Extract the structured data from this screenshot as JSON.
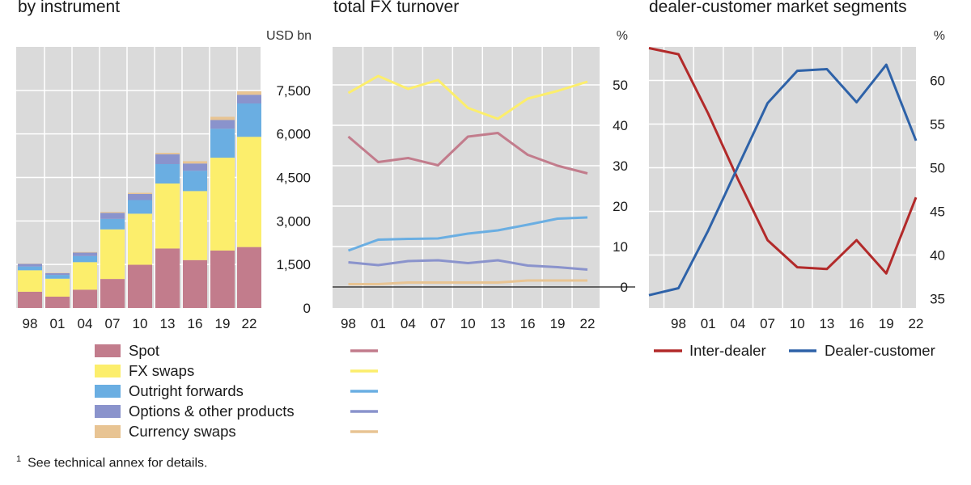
{
  "panels": [
    {
      "title": "by instrument",
      "unit": "USD bn"
    },
    {
      "title": "total FX turnover",
      "unit": "%"
    },
    {
      "title": "dealer-customer market segments",
      "unit": "%"
    }
  ],
  "footnote": {
    "marker": "1",
    "text": "See technical annex for details."
  },
  "colors": {
    "spot": "#c27c8c",
    "fx_swaps": "#fcee6c",
    "outright_forwards": "#6aaee2",
    "options_other": "#8a93cc",
    "currency_swaps": "#e8c493",
    "inter_dealer": "#b22a2a",
    "dealer_customer": "#2e62a8",
    "panel_bg": "#dadada"
  },
  "chart_data": [
    {
      "type": "bar",
      "stacked": true,
      "title": "by instrument",
      "ylabel": "USD bn",
      "categories": [
        "98",
        "01",
        "04",
        "07",
        "10",
        "13",
        "16",
        "19",
        "22"
      ],
      "ylim": [
        0,
        9000
      ],
      "yticks": [
        0,
        1500,
        3000,
        4500,
        6000,
        7500
      ],
      "ytick_labels": [
        "0",
        "1,500",
        "3,000",
        "4,500",
        "6,000",
        "7,500"
      ],
      "grid": true,
      "legend_position": "below",
      "series": [
        {
          "name": "Spot",
          "color_key": "spot",
          "values": [
            560,
            390,
            630,
            1000,
            1490,
            2050,
            1650,
            1980,
            2100
          ]
        },
        {
          "name": "FX swaps",
          "color_key": "fx_swaps",
          "values": [
            740,
            620,
            950,
            1710,
            1760,
            2240,
            2380,
            3200,
            3800
          ]
        },
        {
          "name": "Outright forwards",
          "color_key": "outright_forwards",
          "values": [
            130,
            130,
            210,
            360,
            470,
            670,
            700,
            1000,
            1150
          ]
        },
        {
          "name": "Options & other products",
          "color_key": "options_other",
          "values": [
            90,
            60,
            120,
            210,
            210,
            340,
            250,
            300,
            300
          ]
        },
        {
          "name": "Currency swaps",
          "color_key": "currency_swaps",
          "values": [
            10,
            10,
            20,
            30,
            40,
            50,
            80,
            110,
            120
          ]
        }
      ]
    },
    {
      "type": "line",
      "title": "total FX turnover",
      "ylabel": "%",
      "x": [
        "98",
        "01",
        "04",
        "07",
        "10",
        "13",
        "16",
        "19",
        "22"
      ],
      "ylim": [
        -2,
        55
      ],
      "yticks": [
        0,
        10,
        20,
        30,
        40,
        50
      ],
      "ytick_labels": [
        "0",
        "10",
        "20",
        "30",
        "40",
        "50"
      ],
      "grid": true,
      "legend_position": "below",
      "series": [
        {
          "color_key": "spot",
          "x": [
            1998,
            2001,
            2004,
            2007,
            2010,
            2013,
            2016,
            2019,
            2022
          ],
          "values": [
            37.2,
            30.9,
            31.9,
            30.1,
            37.2,
            38.1,
            32.7,
            30.0,
            28.1
          ]
        },
        {
          "color_key": "fx_swaps",
          "x": [
            1998,
            2001,
            2004,
            2007,
            2010,
            2013,
            2016,
            2019,
            2022
          ],
          "values": [
            48.0,
            52.2,
            49.0,
            51.2,
            44.3,
            41.6,
            46.6,
            48.5,
            50.8
          ]
        },
        {
          "color_key": "outright_forwards",
          "x": [
            1998,
            2001,
            2004,
            2007,
            2010,
            2013,
            2016,
            2019,
            2022
          ],
          "values": [
            9.0,
            11.7,
            11.9,
            12.0,
            13.2,
            14.0,
            15.4,
            16.9,
            17.2
          ]
        },
        {
          "color_key": "options_other",
          "x": [
            1998,
            2001,
            2004,
            2007,
            2010,
            2013,
            2016,
            2019,
            2022
          ],
          "values": [
            6.1,
            5.4,
            6.4,
            6.6,
            5.9,
            6.6,
            5.3,
            4.9,
            4.3
          ]
        },
        {
          "color_key": "currency_swaps",
          "x": [
            1998,
            2001,
            2004,
            2007,
            2010,
            2013,
            2016,
            2019,
            2022
          ],
          "values": [
            0.7,
            0.7,
            1.1,
            1.1,
            1.1,
            1.1,
            1.6,
            1.6,
            1.6
          ]
        }
      ]
    },
    {
      "type": "line",
      "title": "dealer-customer market segments",
      "ylabel": "%",
      "x": [
        "98",
        "01",
        "04",
        "07",
        "10",
        "13",
        "16",
        "19",
        "22"
      ],
      "ylim": [
        35,
        63
      ],
      "yticks": [
        35,
        40,
        45,
        50,
        55,
        60
      ],
      "ytick_labels": [
        "35",
        "40",
        "45",
        "50",
        "55",
        "60"
      ],
      "grid": true,
      "legend_position": "below",
      "series": [
        {
          "name": "Inter-dealer",
          "color_key": "inter_dealer",
          "x": [
            1995,
            1998,
            2001,
            2004,
            2007,
            2010,
            2013,
            2016,
            2019,
            2022
          ],
          "values": [
            63.7,
            63.0,
            56.2,
            48.7,
            41.7,
            38.6,
            38.4,
            41.7,
            37.9,
            46.6
          ]
        },
        {
          "name": "Dealer-customer",
          "color_key": "dealer_customer",
          "x": [
            1995,
            1998,
            2001,
            2004,
            2007,
            2010,
            2013,
            2016,
            2019,
            2022
          ],
          "values": [
            35.4,
            36.2,
            42.8,
            50.1,
            57.4,
            61.1,
            61.3,
            57.5,
            61.8,
            53.1
          ]
        }
      ]
    }
  ]
}
